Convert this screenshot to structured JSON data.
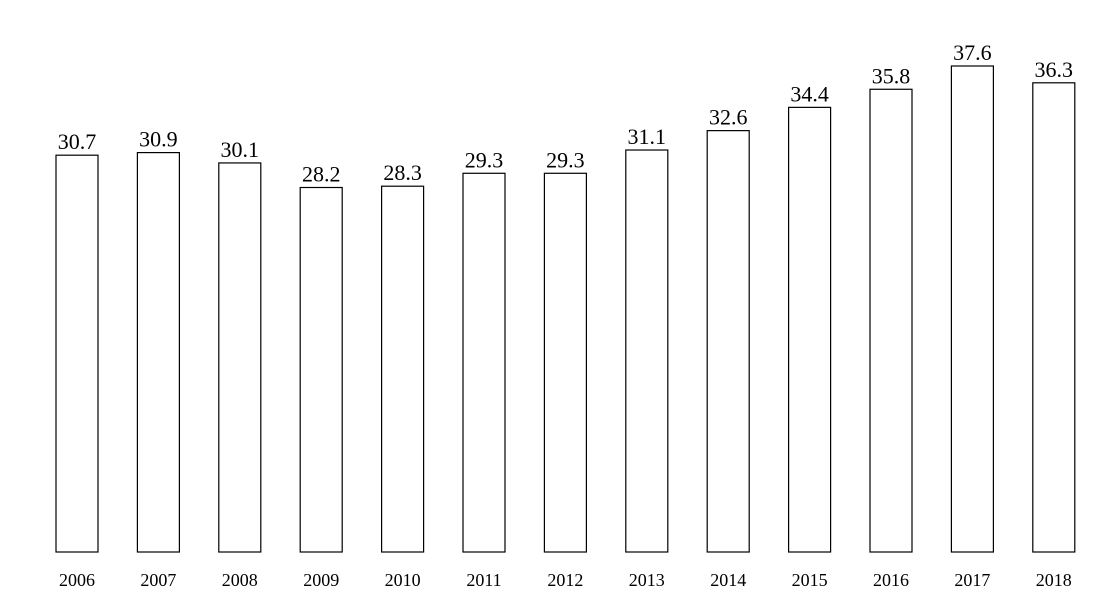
{
  "chart_data": {
    "type": "bar",
    "categories": [
      "2006",
      "2007",
      "2008",
      "2009",
      "2010",
      "2011",
      "2012",
      "2013",
      "2014",
      "2015",
      "2016",
      "2017",
      "2018"
    ],
    "values": [
      30.7,
      30.9,
      30.1,
      28.2,
      28.3,
      29.3,
      29.3,
      31.1,
      32.6,
      34.4,
      35.8,
      37.6,
      36.3
    ],
    "color": "#ffffff"
  }
}
